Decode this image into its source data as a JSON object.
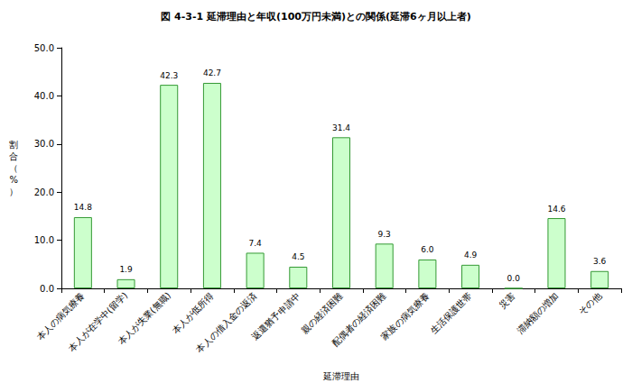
{
  "chart_data": {
    "type": "bar",
    "title": "図 4-3-1 延滞理由と年収(100万円未満)との関係(延滞6ヶ月以上者)",
    "x_label": "延滞理由",
    "y_label": "割合（%）",
    "categories": [
      "本人の病気療養",
      "本人が在学中(留学)",
      "本人が失業(無職)",
      "本人が低所得",
      "本人の借入金の返済",
      "返還猶予申請中",
      "親の経済困難",
      "配偶者の経済困難",
      "家族の病気療養",
      "生活保護世帯",
      "災害",
      "滞納額の増加",
      "その他"
    ],
    "values": [
      14.8,
      1.9,
      42.3,
      42.7,
      7.4,
      4.5,
      31.4,
      9.3,
      6.0,
      4.9,
      0.0,
      14.6,
      3.6
    ],
    "value_labels": [
      "14.8",
      "1.9",
      "42.3",
      "42.7",
      "7.4",
      "4.5",
      "31.4",
      "9.3",
      "6.0",
      "4.9",
      "0.0",
      "14.6",
      "3.6"
    ],
    "color": "#ccffcc",
    "ylim": [
      0,
      50
    ],
    "yticks": [
      {
        "value": 0,
        "label": "0.0"
      },
      {
        "value": 10,
        "label": "10.0"
      },
      {
        "value": 20,
        "label": "20.0"
      },
      {
        "value": 30,
        "label": "30.0"
      },
      {
        "value": 40,
        "label": "40.0"
      },
      {
        "value": 50,
        "label": "50.0"
      }
    ],
    "grid": false,
    "data_labels": true
  }
}
